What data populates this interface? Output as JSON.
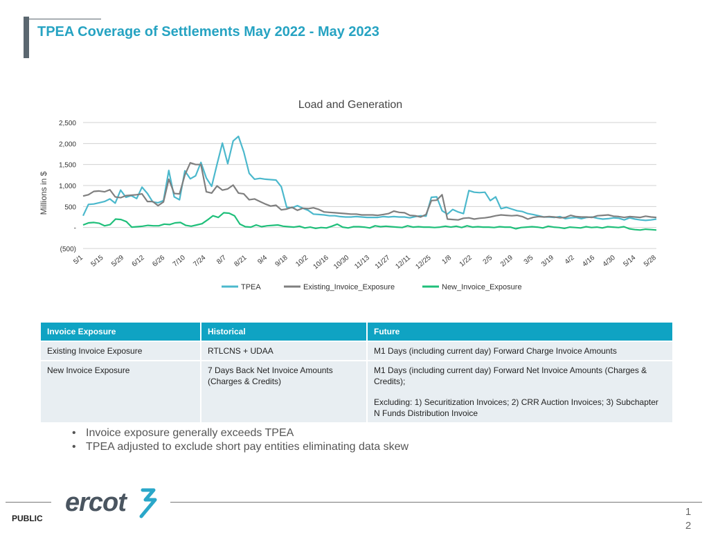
{
  "slide": {
    "title": "TPEA Coverage of Settlements May 2022 -  May 2023",
    "footer_label": "PUBLIC",
    "page_digit_1": "1",
    "page_digit_2": "2",
    "logo_text": "ercot"
  },
  "colors": {
    "accent": "#26a3c2",
    "table_header": "#0fa3c3",
    "tpea": "#4bb8cc",
    "existing": "#7f7f7f",
    "new": "#1fbf7a",
    "logo": "#4a5560",
    "logo_mark": "#2aa7c9"
  },
  "chart_data": {
    "type": "line",
    "title": "Load and Generation",
    "xlabel": "",
    "ylabel": "Millions in $",
    "ylim": [
      -500,
      2500
    ],
    "yticks": [
      -500,
      0,
      500,
      1000,
      1500,
      2000,
      2500
    ],
    "ytick_labels": [
      "(500)",
      "-",
      "500",
      "1,000",
      "1,500",
      "2,000",
      "2,500"
    ],
    "xticks": [
      "5/1",
      "5/15",
      "5/29",
      "6/12",
      "6/26",
      "7/10",
      "7/24",
      "8/7",
      "8/21",
      "9/4",
      "9/18",
      "10/2",
      "10/16",
      "10/30",
      "11/13",
      "11/27",
      "12/11",
      "12/25",
      "1/8",
      "1/22",
      "2/5",
      "2/19",
      "3/5",
      "3/19",
      "4/2",
      "4/16",
      "4/30",
      "5/14",
      "5/28"
    ],
    "series": [
      {
        "name": "TPEA",
        "color_key": "tpea",
        "values": [
          280,
          550,
          560,
          590,
          620,
          680,
          580,
          890,
          720,
          760,
          690,
          960,
          810,
          610,
          590,
          640,
          1360,
          730,
          660,
          1350,
          1160,
          1230,
          1550,
          1180,
          980,
          1510,
          2010,
          1520,
          2060,
          2170,
          1800,
          1290,
          1150,
          1170,
          1150,
          1140,
          1130,
          970,
          480,
          470,
          520,
          460,
          410,
          320,
          310,
          300,
          280,
          280,
          260,
          250,
          250,
          260,
          250,
          240,
          240,
          240,
          260,
          250,
          260,
          250,
          250,
          230,
          260,
          280,
          270,
          720,
          730,
          400,
          320,
          430,
          370,
          330,
          880,
          840,
          830,
          840,
          640,
          730,
          450,
          480,
          440,
          400,
          380,
          330,
          310,
          280,
          250,
          250,
          240,
          260,
          210,
          230,
          240,
          210,
          240,
          250,
          220,
          200,
          210,
          230,
          220,
          180,
          230,
          200,
          180,
          170,
          180,
          200
        ]
      },
      {
        "name": "Existing_Invoice_Exposure",
        "color_key": "existing",
        "values": [
          750,
          780,
          860,
          870,
          850,
          900,
          730,
          710,
          760,
          770,
          780,
          800,
          620,
          620,
          520,
          610,
          1150,
          810,
          800,
          1250,
          1540,
          1500,
          1500,
          850,
          820,
          990,
          890,
          920,
          1010,
          820,
          800,
          660,
          680,
          620,
          560,
          510,
          530,
          420,
          440,
          480,
          410,
          460,
          450,
          470,
          430,
          370,
          360,
          350,
          340,
          330,
          320,
          320,
          300,
          300,
          300,
          290,
          310,
          330,
          390,
          360,
          350,
          290,
          280,
          250,
          310,
          640,
          650,
          780,
          200,
          190,
          180,
          220,
          230,
          200,
          220,
          230,
          250,
          280,
          300,
          290,
          280,
          290,
          260,
          200,
          240,
          260,
          250,
          260,
          250,
          230,
          240,
          290,
          260,
          250,
          250,
          240,
          280,
          290,
          300,
          270,
          260,
          240,
          260,
          250,
          240,
          270,
          250,
          240
        ]
      },
      {
        "name": "New_Invoice_Exposure",
        "color_key": "new",
        "values": [
          60,
          110,
          120,
          100,
          40,
          70,
          200,
          190,
          140,
          10,
          20,
          30,
          50,
          40,
          40,
          80,
          70,
          110,
          120,
          50,
          30,
          60,
          90,
          180,
          280,
          240,
          350,
          340,
          280,
          80,
          20,
          10,
          60,
          20,
          40,
          50,
          60,
          30,
          20,
          10,
          30,
          -10,
          10,
          -20,
          0,
          -10,
          30,
          80,
          10,
          -10,
          20,
          20,
          10,
          -10,
          40,
          20,
          30,
          20,
          10,
          0,
          40,
          10,
          20,
          10,
          10,
          0,
          10,
          30,
          10,
          30,
          0,
          40,
          10,
          20,
          10,
          10,
          0,
          20,
          10,
          10,
          -30,
          0,
          10,
          20,
          10,
          -10,
          30,
          10,
          0,
          -20,
          10,
          0,
          -10,
          20,
          0,
          10,
          -10,
          20,
          10,
          0,
          20,
          -30,
          -50,
          -60,
          -40,
          -50,
          -60
        ]
      }
    ],
    "legend": [
      "TPEA",
      "Existing_Invoice_Exposure",
      "New_Invoice_Exposure"
    ],
    "legend_position": "bottom",
    "grid": true
  },
  "table": {
    "headers": [
      "Invoice Exposure",
      "Historical",
      "Future"
    ],
    "rows": [
      {
        "c0": "Existing Invoice Exposure",
        "c1": "RTLCNS + UDAA",
        "c2": "M1 Days (including current day) Forward Charge Invoice Amounts",
        "c2b": ""
      },
      {
        "c0": "New Invoice Exposure",
        "c1": "7 Days Back Net Invoice Amounts (Charges & Credits)",
        "c2": "M1 Days (including current day) Forward Net Invoice Amounts (Charges & Credits);",
        "c2b": "Excluding: 1) Securitization Invoices; 2) CRR Auction Invoices; 3) Subchapter N Funds Distribution Invoice"
      }
    ]
  },
  "bullets": [
    "Invoice exposure generally exceeds TPEA",
    "TPEA adjusted to exclude short pay entities eliminating data skew"
  ]
}
